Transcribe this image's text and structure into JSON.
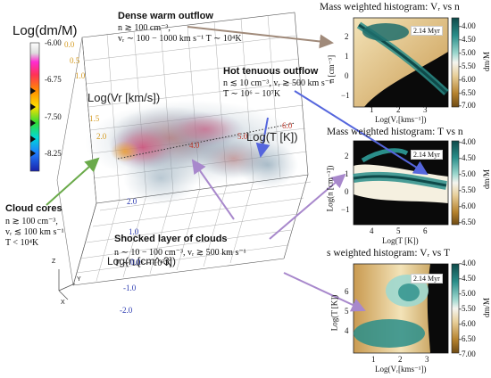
{
  "colorbar_main": {
    "title": "Log(dm/M)",
    "ticks": [
      "-6.00",
      "-6.75",
      "-7.50",
      "-8.25"
    ],
    "colors": [
      "#ffffff",
      "#dddddd",
      "#ff2bd0",
      "#ff3355",
      "#ff8a00",
      "#ffe000",
      "#33dd33",
      "#00d8d8",
      "#1f7cff",
      "#1a22aa"
    ]
  },
  "annotations": {
    "dense_warm": {
      "title": "Dense warm outflow",
      "lines": [
        "n ≳ 100 cm⁻³,",
        "vᵣ ∼ 100 − 1000 km s⁻¹ T ∼ 10⁴K"
      ]
    },
    "hot_tenuous": {
      "title": "Hot tenuous outflow",
      "lines": [
        "n ≲ 10 cm⁻³, vᵣ ≳ 500 km s⁻¹",
        "T ∼ 10⁶ − 10⁷K"
      ]
    },
    "cloud_cores": {
      "title": "Cloud cores",
      "lines": [
        "n ≳ 100 cm⁻³,",
        "vᵣ ≲ 100 km s⁻¹",
        "T < 10⁴K"
      ]
    },
    "shocked": {
      "title": "Shocked layer of clouds",
      "lines": [
        "n ∼ 10 − 100 cm⁻³, vᵣ ≳ 500 km s⁻¹",
        "T ∼ 10⁶ − 10⁷K"
      ]
    }
  },
  "cube": {
    "axis_vr_label": "Log(Vr [km/s])",
    "axis_t_label": "Log(T [K])",
    "axis_n_label": "Log(n [cm^-3])",
    "vr_ticks": [
      "0.0",
      "0.5",
      "1.0",
      "1.5",
      "2.0"
    ],
    "t_ticks": [
      "4.0",
      "5.0",
      "6.0"
    ],
    "n_ticks": [
      "2.0",
      "1.0",
      "0.0",
      "-1.0",
      "-2.0"
    ],
    "triad": [
      "Z",
      "Y",
      "X"
    ]
  },
  "histograms": [
    {
      "title": "Mass weighted histogram: Vᵣ vs n",
      "xlabel": "Log(Vᵣ[kms⁻¹])",
      "ylabel": "n [cm⁻³]",
      "xticks": [
        "1",
        "2",
        "3"
      ],
      "yticks": [
        "2",
        "1",
        "0",
        "−1"
      ],
      "time": "2.14 Myr",
      "cbar_ticks": [
        "-4.00",
        "-4.50",
        "-5.00",
        "-5.50",
        "-6.00",
        "-6.50",
        "-7.00"
      ],
      "cbar_label": "dm/M"
    },
    {
      "title": "Mass weighted histogram: T vs n",
      "xlabel": "Log(T [K])",
      "ylabel": "Log(n [cm⁻³])",
      "xticks": [
        "4",
        "5",
        "6"
      ],
      "yticks": [
        "2",
        "1",
        "0",
        "−1"
      ],
      "time": "2.14 Myr",
      "cbar_ticks": [
        "-4.00",
        "-4.50",
        "-5.00",
        "-5.50",
        "-6.00",
        "-6.50"
      ],
      "cbar_label": "dm/M"
    },
    {
      "title": "s weighted histogram: Vᵣ vs T",
      "xlabel": "Log(Vᵣ[kms⁻¹])",
      "ylabel": "Log(T [K])",
      "xticks": [
        "1",
        "2",
        "3"
      ],
      "yticks": [
        "6",
        "5",
        "4"
      ],
      "time": "2.14 Myr",
      "cbar_ticks": [
        "-4.00",
        "-4.50",
        "-5.00",
        "-5.50",
        "-6.00",
        "-6.50",
        "-7.00"
      ],
      "cbar_label": "dm/M"
    }
  ],
  "chart_data": {
    "type": "heatmap",
    "title": "",
    "panels": [
      {
        "title": "Mass weighted histogram: Vᵣ vs n",
        "x_range": [
          0.5,
          3.5
        ],
        "y_range": [
          -1.5,
          2.8
        ],
        "color_range": [
          -7.0,
          -4.0
        ]
      },
      {
        "title": "Mass weighted histogram: T vs n",
        "x_range": [
          3.0,
          7.0
        ],
        "y_range": [
          -1.5,
          2.8
        ],
        "color_range": [
          -6.75,
          -4.0
        ]
      },
      {
        "title": "s weighted histogram: Vᵣ vs T",
        "x_range": [
          0.5,
          3.5
        ],
        "y_range": [
          3.0,
          7.0
        ],
        "color_range": [
          -7.0,
          -4.0
        ]
      }
    ]
  }
}
